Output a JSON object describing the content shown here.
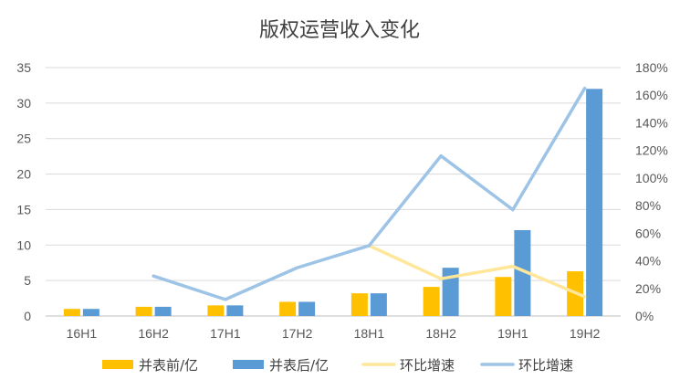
{
  "chart_data": {
    "type": "bar",
    "title": "版权运营收入变化",
    "categories": [
      "16H1",
      "16H2",
      "17H1",
      "17H2",
      "18H1",
      "18H2",
      "19H1",
      "19H2"
    ],
    "series": [
      {
        "name": "并表前/亿",
        "kind": "bar",
        "axis": "left",
        "color": "#FFC000",
        "values": [
          1.0,
          1.3,
          1.5,
          2.0,
          3.2,
          4.1,
          5.5,
          6.3
        ]
      },
      {
        "name": "并表后/亿",
        "kind": "bar",
        "axis": "left",
        "color": "#5B9BD5",
        "values": [
          1.0,
          1.3,
          1.5,
          2.0,
          3.2,
          6.8,
          12.1,
          32.0
        ]
      },
      {
        "name": "环比增速",
        "kind": "line",
        "axis": "right",
        "color": "#FFE699",
        "values": [
          null,
          null,
          null,
          null,
          51,
          27,
          36,
          14
        ]
      },
      {
        "name": "环比增速",
        "kind": "line",
        "axis": "right",
        "color": "#9DC3E6",
        "values": [
          null,
          29,
          12,
          35,
          51,
          116,
          77,
          165
        ]
      }
    ],
    "y_left": {
      "min": 0,
      "max": 35,
      "ticks": [
        "0",
        "5",
        "10",
        "15",
        "20",
        "25",
        "30",
        "35"
      ]
    },
    "y_right": {
      "min": 0,
      "max": 180,
      "ticks": [
        "0%",
        "20%",
        "40%",
        "60%",
        "80%",
        "100%",
        "120%",
        "140%",
        "160%",
        "180%"
      ]
    },
    "grid": true,
    "legend_position": "bottom"
  }
}
